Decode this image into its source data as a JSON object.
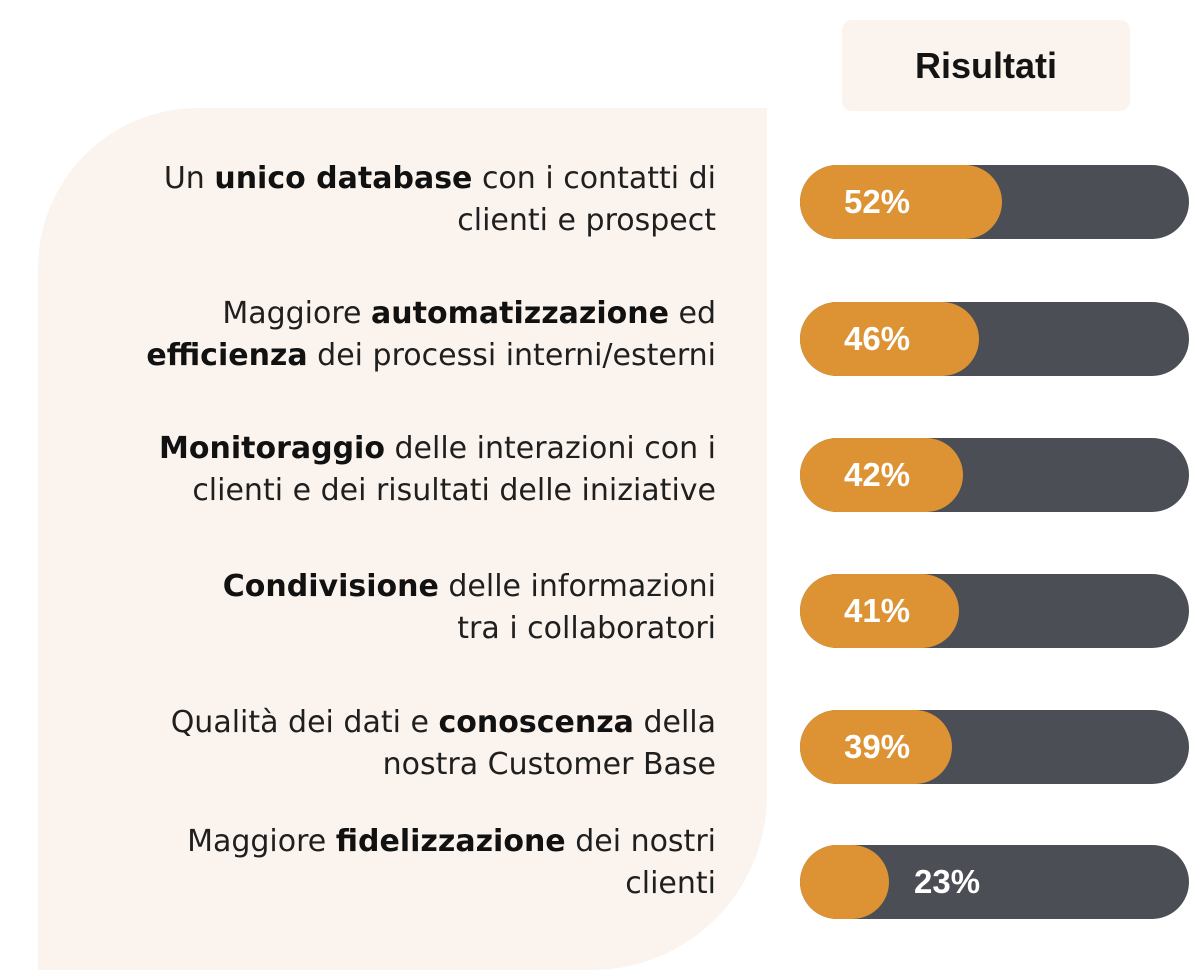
{
  "header": {
    "title": "Risultati"
  },
  "colors": {
    "fill": "#dd9333",
    "track": "#4c4e56",
    "panel": "#fbf4ee"
  },
  "rows": [
    {
      "line1": [
        [
          "",
          "Un "
        ],
        [
          "b",
          "unico database"
        ],
        [
          "",
          " con i contatti di"
        ]
      ],
      "line2": [
        [
          "",
          "clienti e prospect"
        ]
      ],
      "value_label": "52%"
    },
    {
      "line1": [
        [
          "",
          "Maggiore "
        ],
        [
          "b",
          "automatizzazione"
        ],
        [
          "",
          " ed"
        ]
      ],
      "line2": [
        [
          "b",
          "efficienza"
        ],
        [
          "",
          " dei processi interni/esterni"
        ]
      ],
      "value_label": "46%"
    },
    {
      "line1": [
        [
          "b",
          "Monitoraggio"
        ],
        [
          "",
          " delle interazioni con i"
        ]
      ],
      "line2": [
        [
          "",
          "clienti e dei risultati delle iniziative"
        ]
      ],
      "value_label": "42%"
    },
    {
      "line1": [
        [
          "b",
          "Condivisione"
        ],
        [
          "",
          " delle informazioni"
        ]
      ],
      "line2": [
        [
          "",
          "tra i collaboratori"
        ]
      ],
      "value_label": "41%"
    },
    {
      "line1": [
        [
          "",
          "Qualità dei dati e "
        ],
        [
          "b",
          "conoscenza"
        ],
        [
          "",
          " della"
        ]
      ],
      "line2": [
        [
          "",
          "nostra Customer Base"
        ]
      ],
      "value_label": "39%"
    },
    {
      "line1": [
        [
          "",
          "Maggiore "
        ],
        [
          "b",
          "fidelizzazione"
        ],
        [
          "",
          " dei nostri"
        ]
      ],
      "line2": [
        [
          "",
          "clienti"
        ]
      ],
      "value_label": "23%"
    }
  ],
  "chart_data": {
    "type": "bar",
    "orientation": "horizontal",
    "categories": [
      "Un unico database con i contatti di clienti e prospect",
      "Maggiore automatizzazione ed efficienza dei processi interni/esterni",
      "Monitoraggio delle interazioni con i clienti e dei risultati delle iniziative",
      "Condivisione delle informazioni tra i collaboratori",
      "Qualità dei dati e conoscenza della nostra Customer Base",
      "Maggiore fidelizzazione dei nostri clienti"
    ],
    "values": [
      52,
      46,
      42,
      41,
      39,
      23
    ],
    "unit": "%",
    "title": "Risultati"
  }
}
